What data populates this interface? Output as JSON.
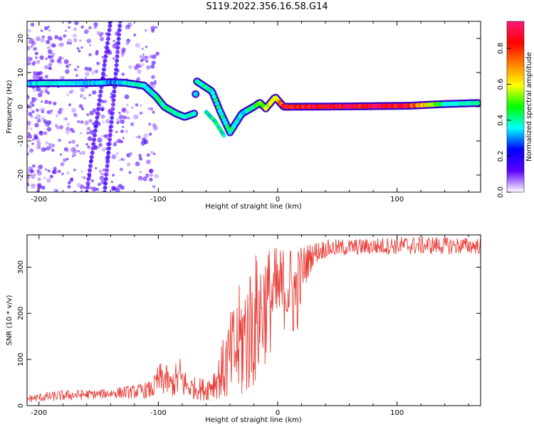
{
  "figure": {
    "title": "S119.2022.356.16.58.G14"
  },
  "chart_data": [
    {
      "type": "heatmap",
      "xlabel": "Height of straight line (km)",
      "ylabel": "Frequency (Hz)",
      "xlim": [
        -210,
        170
      ],
      "ylim": [
        -25,
        25
      ],
      "x_ticks": [
        -200,
        -100,
        0,
        100
      ],
      "y_ticks": [
        20,
        10,
        0,
        -10,
        -20
      ],
      "colorbar": {
        "label": "Normalized spectral amplitude",
        "range": [
          0,
          0.95
        ],
        "ticks": [
          0.0,
          0.2,
          0.4,
          0.6,
          0.8
        ],
        "colors": [
          "#ffffff",
          "#5a00ff",
          "#0000ff",
          "#00ffff",
          "#00ff00",
          "#ffff00",
          "#ff7f00",
          "#ff0000",
          "#ff1a7a"
        ]
      },
      "ridge": [
        {
          "x": -208,
          "y": 6.8,
          "amp": 0.35
        },
        {
          "x": -190,
          "y": 6.9,
          "amp": 0.38
        },
        {
          "x": -170,
          "y": 6.9,
          "amp": 0.36
        },
        {
          "x": -150,
          "y": 7.0,
          "amp": 0.35
        },
        {
          "x": -140,
          "y": 7.2,
          "amp": 0.3
        },
        {
          "x": -128,
          "y": 7.0,
          "amp": 0.38
        },
        {
          "x": -112,
          "y": 6.2,
          "amp": 0.38
        },
        {
          "x": -102,
          "y": 3.0,
          "amp": 0.4
        },
        {
          "x": -95,
          "y": 0.0,
          "amp": 0.42
        },
        {
          "x": -85,
          "y": -2.0,
          "amp": 0.38
        },
        {
          "x": -78,
          "y": -3.0,
          "amp": 0.4
        },
        {
          "x": -70,
          "y": -2.0,
          "amp": 0.38
        },
        {
          "x": -68,
          "y": 7.5,
          "amp": 0.4
        },
        {
          "x": -55,
          "y": 4.5,
          "amp": 0.4
        },
        {
          "x": -48,
          "y": -1.5,
          "amp": 0.4
        },
        {
          "x": -40,
          "y": -7.5,
          "amp": 0.4
        },
        {
          "x": -30,
          "y": -2.0,
          "amp": 0.35
        },
        {
          "x": -20,
          "y": 0.0,
          "amp": 0.42
        },
        {
          "x": -15,
          "y": 1.2,
          "amp": 0.5
        },
        {
          "x": -10,
          "y": -0.5,
          "amp": 0.6
        },
        {
          "x": -2,
          "y": 2.8,
          "amp": 0.55
        },
        {
          "x": 5,
          "y": 0.0,
          "amp": 0.85
        },
        {
          "x": 60,
          "y": 0.1,
          "amp": 0.9
        },
        {
          "x": 110,
          "y": 0.3,
          "amp": 0.85
        },
        {
          "x": 140,
          "y": 0.8,
          "amp": 0.4
        },
        {
          "x": 168,
          "y": 1.1,
          "amp": 0.38
        }
      ],
      "secondary_tracks": [
        {
          "x": [
            -160,
            -150,
            -140
          ],
          "y": [
            -25,
            0,
            25
          ],
          "amp": 0.15
        },
        {
          "x": [
            -145,
            -138,
            -132
          ],
          "y": [
            -25,
            0,
            25
          ],
          "amp": 0.15
        },
        {
          "x": [
            -60,
            -52,
            -45
          ],
          "y": [
            -1.5,
            -4.5,
            -8.5
          ],
          "amp": 0.4
        }
      ]
    },
    {
      "type": "line",
      "xlabel": "Height of straight line (km)",
      "ylabel": "SNR (10 * v/v)",
      "xlim": [
        -210,
        170
      ],
      "ylim": [
        0,
        370
      ],
      "x_ticks": [
        -200,
        -100,
        0,
        100
      ],
      "y_ticks": [
        0,
        100,
        200,
        300
      ],
      "series": [
        {
          "color": "#e8403a",
          "envelope": [
            {
              "x": -210,
              "y": 15,
              "spread": 8
            },
            {
              "x": -180,
              "y": 22,
              "spread": 12
            },
            {
              "x": -150,
              "y": 25,
              "spread": 10
            },
            {
              "x": -120,
              "y": 30,
              "spread": 15
            },
            {
              "x": -105,
              "y": 35,
              "spread": 20
            },
            {
              "x": -100,
              "y": 55,
              "spread": 35
            },
            {
              "x": -95,
              "y": 60,
              "spread": 40
            },
            {
              "x": -90,
              "y": 45,
              "spread": 25
            },
            {
              "x": -82,
              "y": 60,
              "spread": 50
            },
            {
              "x": -75,
              "y": 40,
              "spread": 25
            },
            {
              "x": -60,
              "y": 35,
              "spread": 25
            },
            {
              "x": -50,
              "y": 60,
              "spread": 45
            },
            {
              "x": -40,
              "y": 100,
              "spread": 100
            },
            {
              "x": -30,
              "y": 140,
              "spread": 140
            },
            {
              "x": -20,
              "y": 180,
              "spread": 150
            },
            {
              "x": -10,
              "y": 220,
              "spread": 130
            },
            {
              "x": 0,
              "y": 245,
              "spread": 100
            },
            {
              "x": 8,
              "y": 260,
              "spread": 90
            },
            {
              "x": 15,
              "y": 240,
              "spread": 110
            },
            {
              "x": 22,
              "y": 300,
              "spread": 50
            },
            {
              "x": 30,
              "y": 330,
              "spread": 25
            },
            {
              "x": 40,
              "y": 340,
              "spread": 20
            },
            {
              "x": 60,
              "y": 343,
              "spread": 18
            },
            {
              "x": 100,
              "y": 347,
              "spread": 20
            },
            {
              "x": 130,
              "y": 347,
              "spread": 20
            },
            {
              "x": 170,
              "y": 346,
              "spread": 18
            }
          ]
        }
      ]
    }
  ]
}
